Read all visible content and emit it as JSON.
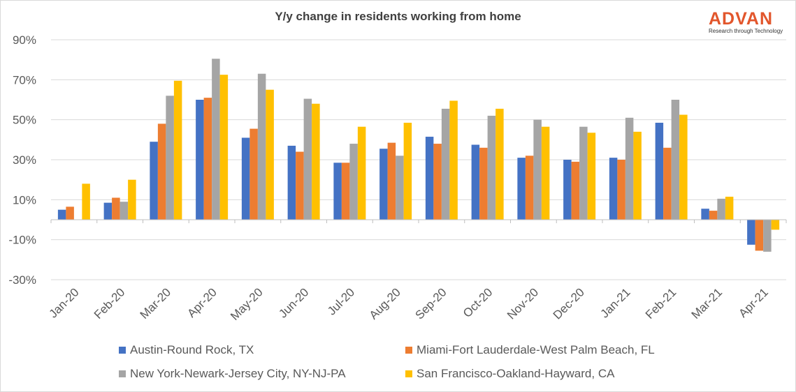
{
  "logo": {
    "word": "ADVAN",
    "tagline": "Research through Technology"
  },
  "chart_data": {
    "type": "bar",
    "title": "Y/y change in residents working from home",
    "xlabel": "",
    "ylabel": "",
    "ylim": [
      -30,
      90
    ],
    "yticks": [
      {
        "value": 90,
        "label": "90%"
      },
      {
        "value": 70,
        "label": "70%"
      },
      {
        "value": 50,
        "label": "50%"
      },
      {
        "value": 30,
        "label": "30%"
      },
      {
        "value": 10,
        "label": "10%"
      },
      {
        "value": -10,
        "label": "-10%"
      },
      {
        "value": -30,
        "label": "-30%"
      }
    ],
    "grid": true,
    "legend_position": "bottom",
    "categories": [
      "Jan-20",
      "Feb-20",
      "Mar-20",
      "Apr-20",
      "May-20",
      "Jun-20",
      "Jul-20",
      "Aug-20",
      "Sep-20",
      "Oct-20",
      "Nov-20",
      "Dec-20",
      "Jan-21",
      "Feb-21",
      "Mar-21",
      "Apr-21"
    ],
    "series": [
      {
        "name": "Austin-Round Rock, TX",
        "color": "#4472c4",
        "values": [
          5,
          8.5,
          39,
          60,
          41,
          37,
          28.5,
          35.5,
          41.5,
          37.5,
          31,
          30,
          31,
          48.5,
          5.5,
          -12.5
        ]
      },
      {
        "name": "Miami-Fort Lauderdale-West Palm Beach, FL",
        "color": "#ed7d31",
        "values": [
          6.5,
          11,
          48,
          61,
          45.5,
          34,
          28.5,
          38.5,
          38,
          36,
          32,
          29,
          30,
          36,
          4.5,
          -15.5
        ]
      },
      {
        "name": "New York-Newark-Jersey City, NY-NJ-PA",
        "color": "#a5a5a5",
        "values": [
          0,
          9,
          62,
          80.5,
          73,
          60.5,
          38,
          32,
          55.5,
          52,
          50,
          46.5,
          51,
          60,
          10.5,
          -16
        ]
      },
      {
        "name": "San Francisco-Oakland-Hayward, CA",
        "color": "#ffc000",
        "values": [
          18,
          20,
          69.5,
          72.5,
          65,
          58,
          46.5,
          48.5,
          59.5,
          55.5,
          46.5,
          43.5,
          44,
          52.5,
          11.5,
          -5
        ]
      }
    ]
  }
}
